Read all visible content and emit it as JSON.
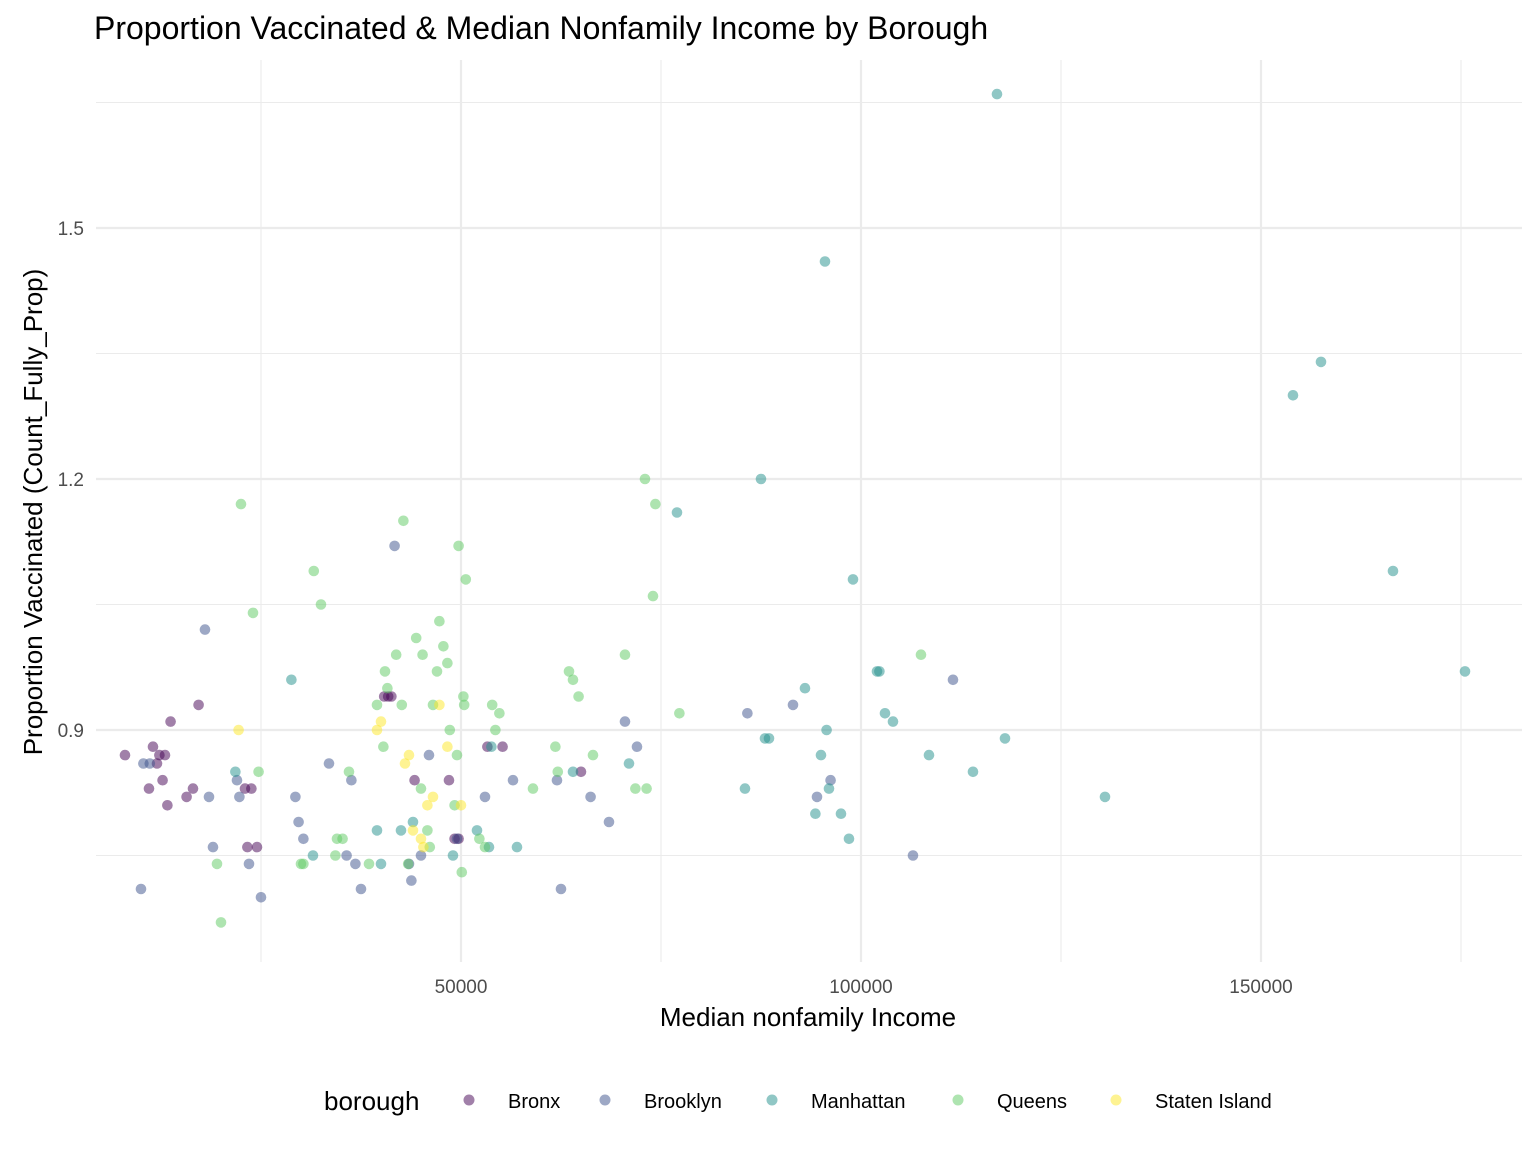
{
  "chart_data": {
    "type": "scatter",
    "title": "Proportion Vaccinated & Median Nonfamily Income by Borough",
    "xlabel": "Median nonfamily Income",
    "ylabel": "Proportion Vaccinated (Count_Fully_Prop)",
    "xlim": [
      0,
      180000
    ],
    "ylim": [
      0.6,
      1.7
    ],
    "x_major_ticks": [
      50000,
      100000,
      150000
    ],
    "x_minor_ticks": [
      25000,
      75000,
      125000,
      175000
    ],
    "y_major_ticks": [
      0.9,
      1.2,
      1.5
    ],
    "y_minor_ticks": [
      0.75,
      1.05,
      1.35,
      1.65
    ],
    "x_tick_labels": [
      "50000",
      "100000",
      "150000"
    ],
    "y_tick_labels": [
      "0.9",
      "1.2",
      "1.5"
    ],
    "grid": true,
    "legend": {
      "title": "borough",
      "position": "bottom"
    },
    "series": [
      {
        "name": "Bronx",
        "color": "#440154",
        "points": [
          [
            8000,
            0.87
          ],
          [
            11000,
            0.83
          ],
          [
            11500,
            0.88
          ],
          [
            12000,
            0.86
          ],
          [
            12300,
            0.87
          ],
          [
            12700,
            0.84
          ],
          [
            13000,
            0.87
          ],
          [
            13300,
            0.81
          ],
          [
            13700,
            0.91
          ],
          [
            15700,
            0.82
          ],
          [
            16500,
            0.83
          ],
          [
            17200,
            0.93
          ],
          [
            23000,
            0.83
          ],
          [
            23300,
            0.76
          ],
          [
            23800,
            0.83
          ],
          [
            24500,
            0.76
          ],
          [
            40400,
            0.94
          ],
          [
            40900,
            0.94
          ],
          [
            41300,
            0.94
          ],
          [
            44200,
            0.84
          ],
          [
            48500,
            0.84
          ],
          [
            49200,
            0.77
          ],
          [
            49700,
            0.77
          ],
          [
            53300,
            0.88
          ],
          [
            55200,
            0.88
          ],
          [
            65000,
            0.85
          ]
        ]
      },
      {
        "name": "Brooklyn",
        "color": "#3b528b",
        "points": [
          [
            10000,
            0.71
          ],
          [
            10300,
            0.86
          ],
          [
            11100,
            0.86
          ],
          [
            18000,
            1.02
          ],
          [
            18500,
            0.82
          ],
          [
            19000,
            0.76
          ],
          [
            22000,
            0.84
          ],
          [
            22300,
            0.82
          ],
          [
            23500,
            0.74
          ],
          [
            25000,
            0.7
          ],
          [
            29300,
            0.82
          ],
          [
            29700,
            0.79
          ],
          [
            30300,
            0.77
          ],
          [
            33500,
            0.86
          ],
          [
            35700,
            0.75
          ],
          [
            36300,
            0.84
          ],
          [
            36800,
            0.74
          ],
          [
            37500,
            0.71
          ],
          [
            41700,
            1.12
          ],
          [
            43500,
            0.74
          ],
          [
            43800,
            0.72
          ],
          [
            45000,
            0.75
          ],
          [
            46000,
            0.87
          ],
          [
            49500,
            0.77
          ],
          [
            53000,
            0.82
          ],
          [
            56500,
            0.84
          ],
          [
            62500,
            0.71
          ],
          [
            62000,
            0.84
          ],
          [
            66200,
            0.82
          ],
          [
            68500,
            0.79
          ],
          [
            70500,
            0.91
          ],
          [
            72000,
            0.88
          ],
          [
            85800,
            0.92
          ],
          [
            91500,
            0.93
          ],
          [
            94500,
            0.82
          ],
          [
            96200,
            0.84
          ],
          [
            106500,
            0.75
          ],
          [
            111500,
            0.96
          ]
        ]
      },
      {
        "name": "Manhattan",
        "color": "#21908c",
        "points": [
          [
            21800,
            0.85
          ],
          [
            28800,
            0.96
          ],
          [
            31500,
            0.75
          ],
          [
            39500,
            0.78
          ],
          [
            40000,
            0.74
          ],
          [
            42500,
            0.78
          ],
          [
            44000,
            0.79
          ],
          [
            49000,
            0.75
          ],
          [
            52000,
            0.78
          ],
          [
            53500,
            0.76
          ],
          [
            53800,
            0.88
          ],
          [
            57000,
            0.76
          ],
          [
            64000,
            0.85
          ],
          [
            71000,
            0.86
          ],
          [
            77000,
            1.16
          ],
          [
            85500,
            0.83
          ],
          [
            87500,
            1.2
          ],
          [
            88000,
            0.89
          ],
          [
            88500,
            0.89
          ],
          [
            93000,
            0.95
          ],
          [
            94300,
            0.8
          ],
          [
            95000,
            0.87
          ],
          [
            95500,
            1.46
          ],
          [
            95700,
            0.9
          ],
          [
            96000,
            0.83
          ],
          [
            97500,
            0.8
          ],
          [
            98500,
            0.77
          ],
          [
            99000,
            1.08
          ],
          [
            102000,
            0.97
          ],
          [
            102300,
            0.97
          ],
          [
            103000,
            0.92
          ],
          [
            104000,
            0.91
          ],
          [
            108500,
            0.87
          ],
          [
            114000,
            0.85
          ],
          [
            117000,
            1.66
          ],
          [
            118000,
            0.89
          ],
          [
            130500,
            0.82
          ],
          [
            154000,
            1.3
          ],
          [
            157500,
            1.34
          ],
          [
            166500,
            1.09
          ],
          [
            175500,
            0.97
          ]
        ]
      },
      {
        "name": "Queens",
        "color": "#5ec962",
        "points": [
          [
            19500,
            0.74
          ],
          [
            20000,
            0.67
          ],
          [
            22500,
            1.17
          ],
          [
            24000,
            1.04
          ],
          [
            24700,
            0.85
          ],
          [
            30000,
            0.74
          ],
          [
            30300,
            0.74
          ],
          [
            31600,
            1.09
          ],
          [
            32500,
            1.05
          ],
          [
            34300,
            0.75
          ],
          [
            34500,
            0.77
          ],
          [
            35200,
            0.77
          ],
          [
            36000,
            0.85
          ],
          [
            38500,
            0.74
          ],
          [
            39500,
            0.93
          ],
          [
            40300,
            0.88
          ],
          [
            40500,
            0.97
          ],
          [
            40800,
            0.95
          ],
          [
            41900,
            0.99
          ],
          [
            42600,
            0.93
          ],
          [
            42800,
            1.15
          ],
          [
            43400,
            0.74
          ],
          [
            44400,
            1.01
          ],
          [
            45000,
            0.83
          ],
          [
            45200,
            0.99
          ],
          [
            45800,
            0.78
          ],
          [
            46100,
            0.76
          ],
          [
            46500,
            0.93
          ],
          [
            47000,
            0.97
          ],
          [
            47300,
            1.03
          ],
          [
            47800,
            1.0
          ],
          [
            48300,
            0.98
          ],
          [
            48600,
            0.9
          ],
          [
            49200,
            0.81
          ],
          [
            49500,
            0.87
          ],
          [
            49700,
            1.12
          ],
          [
            50100,
            0.73
          ],
          [
            50300,
            0.94
          ],
          [
            50400,
            0.93
          ],
          [
            50600,
            1.08
          ],
          [
            52300,
            0.77
          ],
          [
            53000,
            0.76
          ],
          [
            53900,
            0.93
          ],
          [
            54300,
            0.9
          ],
          [
            54800,
            0.92
          ],
          [
            59000,
            0.83
          ],
          [
            61800,
            0.88
          ],
          [
            62100,
            0.85
          ],
          [
            63500,
            0.97
          ],
          [
            64000,
            0.96
          ],
          [
            64700,
            0.94
          ],
          [
            66500,
            0.87
          ],
          [
            70500,
            0.99
          ],
          [
            71800,
            0.83
          ],
          [
            73000,
            1.2
          ],
          [
            73200,
            0.83
          ],
          [
            74000,
            1.06
          ],
          [
            74300,
            1.17
          ],
          [
            77300,
            0.92
          ],
          [
            107500,
            0.99
          ]
        ]
      },
      {
        "name": "Staten Island",
        "color": "#fde725",
        "points": [
          [
            22200,
            0.9
          ],
          [
            39500,
            0.9
          ],
          [
            40000,
            0.91
          ],
          [
            43000,
            0.86
          ],
          [
            43500,
            0.87
          ],
          [
            44000,
            0.78
          ],
          [
            45000,
            0.77
          ],
          [
            45300,
            0.76
          ],
          [
            45800,
            0.81
          ],
          [
            46500,
            0.82
          ],
          [
            47300,
            0.93
          ],
          [
            48300,
            0.88
          ],
          [
            50000,
            0.81
          ]
        ]
      }
    ]
  }
}
